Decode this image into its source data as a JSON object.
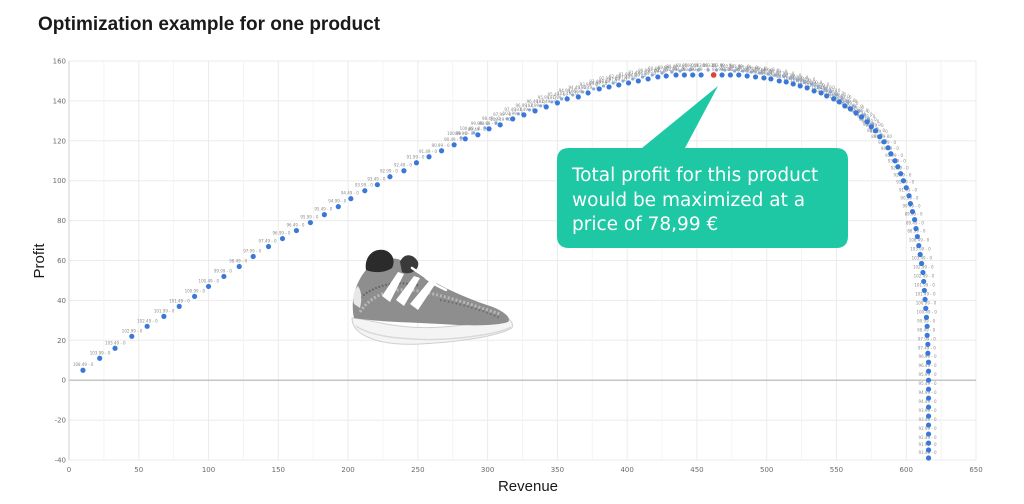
{
  "page": {
    "title": "Optimization example for one product"
  },
  "chart_data": {
    "type": "scatter",
    "title": "Optimization example for one product",
    "xlabel": "Revenue",
    "ylabel": "Profit",
    "xlim": [
      0,
      650
    ],
    "ylim": [
      -40,
      160
    ],
    "xticks": [
      0,
      50,
      100,
      150,
      200,
      250,
      300,
      350,
      400,
      450,
      500,
      550,
      600,
      650
    ],
    "yticks": [
      -40,
      -20,
      0,
      20,
      40,
      60,
      80,
      100,
      120,
      140,
      160
    ],
    "grid": true,
    "colors": {
      "points": "#3a78d8",
      "optimum": "#e0413a",
      "callout": "#1fc8a4",
      "zero_line": "#b5b5b5",
      "grid": "#ebebeb"
    },
    "optimum": {
      "x": 462,
      "y": 153
    },
    "callout": {
      "lines": [
        "Total profit for this product",
        "would be maximized at a",
        "price of 78,99 €"
      ],
      "color": "#1fc8a4"
    },
    "point_labels": [
      "108.49 - 0",
      "103.99 - 0",
      "103.49 - 0",
      "102.99 - 0",
      "102.49 - 0",
      "101.99 - 0",
      "101.49 - 0",
      "100.99 - 0",
      "100.49 - 0",
      "99.99 - 0",
      "98.49 - 0",
      "97.99 - 0",
      "97.49 - 0",
      "96.99 - 0",
      "96.49 - 0",
      "95.99 - 0",
      "95.49 - 0",
      "94.99 - 0",
      "94.49 - 0",
      "93.99 - 0",
      "93.49 - 0",
      "92.99 - 0",
      "92.49 - 0",
      "91.99 - 0",
      "91.49 - 0",
      "90.99 - 0",
      "90.49 - 0",
      "89.99 - 0",
      "89.49 - 0",
      "88.99 - 0"
    ],
    "upper_points": [
      [
        10,
        5
      ],
      [
        22,
        11
      ],
      [
        33,
        16
      ],
      [
        45,
        22
      ],
      [
        56,
        27
      ],
      [
        68,
        32
      ],
      [
        79,
        37
      ],
      [
        90,
        42
      ],
      [
        100,
        47
      ],
      [
        111,
        52
      ],
      [
        122,
        57
      ],
      [
        132,
        62
      ],
      [
        143,
        67
      ],
      [
        153,
        71
      ],
      [
        163,
        75
      ],
      [
        173,
        79
      ],
      [
        183,
        83
      ],
      [
        193,
        87
      ],
      [
        202,
        91
      ],
      [
        212,
        95
      ],
      [
        221,
        98
      ],
      [
        230,
        102
      ],
      [
        240,
        105
      ],
      [
        249,
        109
      ],
      [
        258,
        112
      ],
      [
        267,
        115
      ],
      [
        276,
        118
      ],
      [
        284,
        121
      ],
      [
        293,
        123
      ],
      [
        301,
        126
      ],
      [
        309,
        128
      ],
      [
        318,
        131
      ],
      [
        326,
        133
      ],
      [
        334,
        135
      ],
      [
        342,
        137
      ],
      [
        350,
        139
      ],
      [
        357,
        141
      ],
      [
        365,
        142
      ],
      [
        372,
        144
      ],
      [
        380,
        146
      ],
      [
        387,
        147
      ],
      [
        394,
        148
      ],
      [
        401,
        149
      ],
      [
        408,
        150
      ],
      [
        415,
        151
      ],
      [
        422,
        152
      ],
      [
        428,
        152.5
      ],
      [
        435,
        153
      ],
      [
        441,
        153
      ],
      [
        447,
        153
      ],
      [
        453,
        153
      ],
      [
        468,
        153
      ],
      [
        474,
        153
      ],
      [
        480,
        153
      ],
      [
        486,
        152.5
      ],
      [
        492,
        152
      ],
      [
        498,
        151.5
      ],
      [
        503,
        151
      ],
      [
        509,
        150
      ],
      [
        514,
        149.5
      ],
      [
        519,
        148.5
      ],
      [
        524,
        147.5
      ],
      [
        529,
        146.5
      ],
      [
        534,
        145
      ],
      [
        539,
        144
      ],
      [
        543,
        142.5
      ],
      [
        548,
        141
      ],
      [
        552,
        139.5
      ],
      [
        556,
        137.5
      ],
      [
        560,
        136
      ],
      [
        564,
        134
      ],
      [
        568,
        132
      ],
      [
        572,
        129.5
      ],
      [
        575,
        127
      ],
      [
        578,
        125
      ],
      [
        581,
        122
      ],
      [
        584,
        119.5
      ],
      [
        587,
        116.5
      ],
      [
        589,
        113.5
      ],
      [
        592,
        110
      ],
      [
        594,
        107
      ],
      [
        596,
        103.5
      ],
      [
        598,
        100
      ],
      [
        600,
        96.5
      ],
      [
        602,
        92.5
      ],
      [
        603,
        88.5
      ],
      [
        604.5,
        84.5
      ],
      [
        606,
        80.5
      ],
      [
        607,
        76
      ],
      [
        608,
        72
      ],
      [
        609,
        67.5
      ],
      [
        610,
        63
      ],
      [
        611,
        58.5
      ],
      [
        612,
        54
      ],
      [
        612.5,
        49.5
      ],
      [
        613,
        45
      ],
      [
        613.5,
        40.5
      ],
      [
        614,
        36
      ],
      [
        614.5,
        31.5
      ],
      [
        615,
        27
      ],
      [
        615,
        22.5
      ],
      [
        615.5,
        18
      ],
      [
        615.5,
        13.5
      ],
      [
        616,
        9
      ],
      [
        616,
        4.5
      ],
      [
        616,
        0
      ],
      [
        616,
        -4.5
      ],
      [
        616,
        -9
      ],
      [
        616,
        -13.5
      ],
      [
        616,
        -18
      ],
      [
        616,
        -22.5
      ],
      [
        616,
        -27
      ],
      [
        616,
        -31.5
      ],
      [
        616,
        -35
      ],
      [
        616,
        -39
      ]
    ],
    "lower_points": [
      [
        281,
        121.5
      ],
      [
        290,
        124
      ],
      [
        298,
        126.5
      ],
      [
        306,
        129
      ],
      [
        314,
        131
      ],
      [
        322,
        133.5
      ],
      [
        330,
        135.5
      ],
      [
        338,
        137.5
      ],
      [
        346,
        139.5
      ],
      [
        353,
        141
      ],
      [
        361,
        143
      ],
      [
        368,
        144.5
      ],
      [
        376,
        146
      ],
      [
        383,
        147.5
      ],
      [
        390,
        149
      ],
      [
        397,
        150
      ],
      [
        404,
        151
      ],
      [
        411,
        152
      ],
      [
        418,
        153
      ],
      [
        425,
        154
      ],
      [
        432,
        154.5
      ],
      [
        438,
        155
      ],
      [
        445,
        155.5
      ],
      [
        451,
        155.5
      ],
      [
        458,
        155.5
      ],
      [
        464,
        155.5
      ],
      [
        470,
        155.5
      ],
      [
        477,
        155
      ],
      [
        483,
        155
      ],
      [
        489,
        154.5
      ],
      [
        495,
        154
      ],
      [
        501,
        153.5
      ],
      [
        506,
        153
      ],
      [
        512,
        152.5
      ],
      [
        517,
        151.5
      ],
      [
        522,
        150.5
      ],
      [
        527,
        149.5
      ],
      [
        532,
        148.5
      ],
      [
        537,
        147
      ],
      [
        542,
        146
      ],
      [
        546,
        144.5
      ],
      [
        550,
        143
      ],
      [
        554,
        141
      ],
      [
        558,
        139.5
      ],
      [
        562,
        137.5
      ],
      [
        566,
        135
      ],
      [
        570,
        133
      ],
      [
        573,
        131
      ],
      [
        576,
        128.5
      ],
      [
        579,
        126
      ],
      [
        582,
        123
      ],
      [
        585,
        120
      ]
    ]
  }
}
